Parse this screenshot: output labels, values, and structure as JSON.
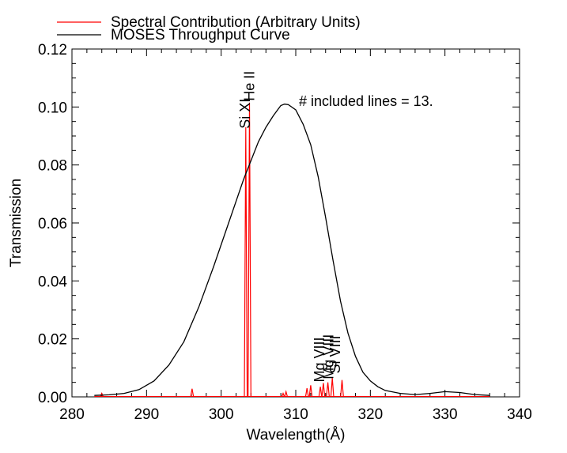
{
  "chart_data": {
    "type": "line",
    "xlabel": "Wavelength(Å)",
    "ylabel": "Transmission",
    "xlim": [
      280,
      340
    ],
    "ylim": [
      0,
      0.12
    ],
    "x_ticks": [
      280,
      290,
      300,
      310,
      320,
      330,
      340
    ],
    "y_ticks": [
      0.0,
      0.02,
      0.04,
      0.06,
      0.08,
      0.1,
      0.12
    ],
    "grid": false,
    "legend": {
      "placement": "top-left-outside",
      "entries": [
        {
          "label": "Spectral Contribution (Arbitrary Units)",
          "color": "#ff0000"
        },
        {
          "label": "MOSES Throughput Curve",
          "color": "#000000"
        }
      ]
    },
    "annotation": "# included lines = 13.",
    "series": [
      {
        "color": "#000000",
        "points": [
          [
            283,
            0.0005
          ],
          [
            285,
            0.0007
          ],
          [
            287,
            0.0012
          ],
          [
            289,
            0.0025
          ],
          [
            291,
            0.0055
          ],
          [
            293,
            0.011
          ],
          [
            295,
            0.019
          ],
          [
            297,
            0.031
          ],
          [
            299,
            0.045
          ],
          [
            301,
            0.06
          ],
          [
            303,
            0.075
          ],
          [
            305,
            0.088
          ],
          [
            306,
            0.093
          ],
          [
            307,
            0.097
          ],
          [
            308,
            0.1005
          ],
          [
            308.5,
            0.101
          ],
          [
            309,
            0.1008
          ],
          [
            310,
            0.099
          ],
          [
            311,
            0.094
          ],
          [
            312,
            0.087
          ],
          [
            313,
            0.076
          ],
          [
            314,
            0.062
          ],
          [
            315,
            0.047
          ],
          [
            316,
            0.033
          ],
          [
            317,
            0.022
          ],
          [
            318,
            0.014
          ],
          [
            319,
            0.0085
          ],
          [
            320,
            0.0055
          ],
          [
            321,
            0.0035
          ],
          [
            322,
            0.0022
          ],
          [
            324,
            0.0012
          ],
          [
            326,
            0.0008
          ],
          [
            328,
            0.0012
          ],
          [
            330,
            0.0018
          ],
          [
            332,
            0.0015
          ],
          [
            334,
            0.0008
          ],
          [
            336,
            0.0005
          ]
        ]
      },
      {
        "color": "#ff0000",
        "spikes": [
          [
            284.0,
            0.0012
          ],
          [
            296.1,
            0.0028
          ],
          [
            303.3,
            0.093
          ],
          [
            303.8,
            0.1015
          ],
          [
            308.3,
            0.0012
          ],
          [
            308.7,
            0.0018
          ],
          [
            311.5,
            0.003
          ],
          [
            312.0,
            0.004
          ],
          [
            313.3,
            0.0035
          ],
          [
            313.7,
            0.0048
          ],
          [
            314.3,
            0.005
          ],
          [
            314.9,
            0.0065
          ],
          [
            316.2,
            0.0058
          ]
        ]
      }
    ],
    "line_labels": [
      {
        "text": "He II",
        "x": 303.8,
        "y": 0.1015
      },
      {
        "text": "Si XI",
        "x": 303.2,
        "y": 0.092
      },
      {
        "text": "Mg VIII",
        "x": 313.2,
        "y": 0.0045
      },
      {
        "text": "Mg VIII",
        "x": 314.4,
        "y": 0.0055
      },
      {
        "text": "Si VIII",
        "x": 315.3,
        "y": 0.0075
      }
    ]
  }
}
